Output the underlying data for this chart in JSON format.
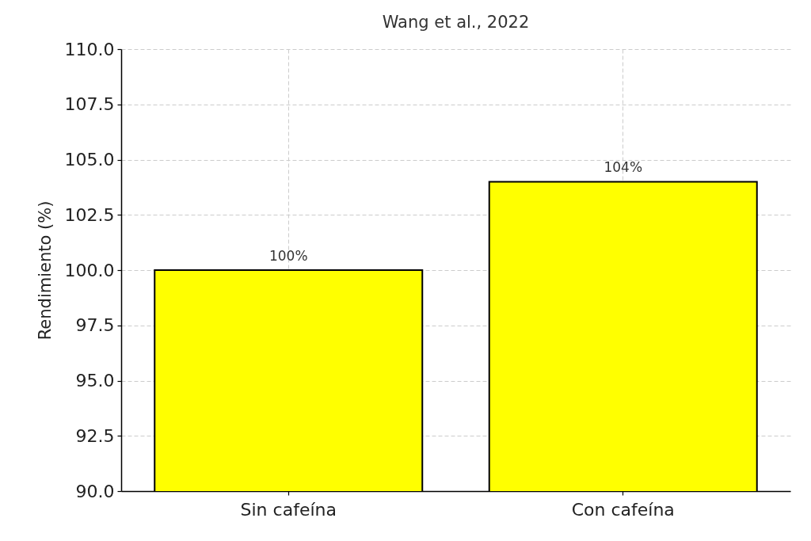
{
  "chart_data": {
    "type": "bar",
    "title": "Wang et al., 2022",
    "ylabel": "Rendimiento (%)",
    "categories": [
      "Sin cafeína",
      "Con cafeína"
    ],
    "values": [
      100,
      104
    ],
    "value_labels": [
      "100%",
      "104%"
    ],
    "colors": [
      "#ffff00",
      "#ffff00"
    ],
    "ylim": [
      90,
      110
    ],
    "yticks": [
      {
        "value": 90,
        "label": "90.0"
      },
      92.5,
      {
        "value": 95,
        "label": "95.0"
      },
      97.5,
      {
        "value": 100,
        "label": "100.0"
      },
      102.5,
      {
        "value": 105,
        "label": "105.0"
      },
      107.5,
      {
        "value": 110,
        "label": "110.0"
      }
    ],
    "grid": true
  }
}
